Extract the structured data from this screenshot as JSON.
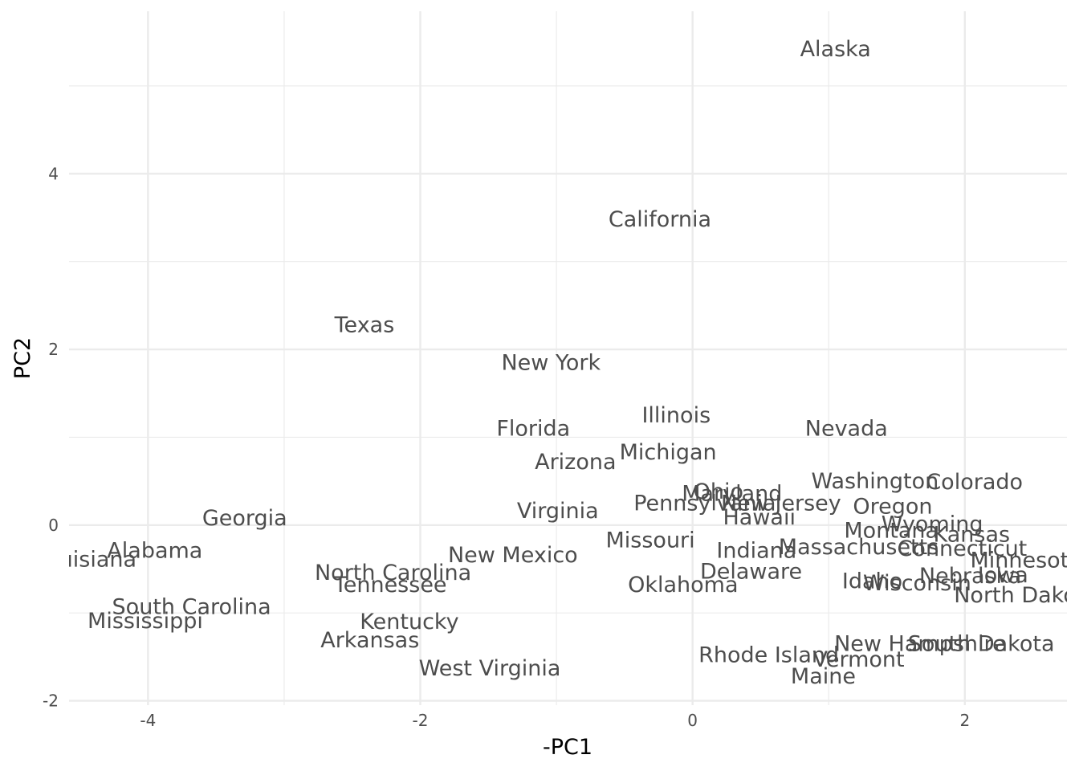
{
  "chart_data": {
    "type": "scatter",
    "xlabel": "-PC1",
    "ylabel": "PC2",
    "xlim": [
      -4.58,
      2.75
    ],
    "ylim": [
      -2.05,
      5.85
    ],
    "x_major_ticks": [
      -4,
      -2,
      0,
      2
    ],
    "x_minor_ticks": [
      -3,
      -1,
      1
    ],
    "y_major_ticks": [
      -2,
      0,
      2,
      4
    ],
    "y_minor_ticks": [
      -1,
      1,
      3,
      5
    ],
    "grid": true,
    "points": [
      {
        "label": "Alaska",
        "x": 1.05,
        "y": 5.43
      },
      {
        "label": "California",
        "x": -0.24,
        "y": 3.49
      },
      {
        "label": "Texas",
        "x": -2.41,
        "y": 2.29
      },
      {
        "label": "New York",
        "x": -1.04,
        "y": 1.86
      },
      {
        "label": "Illinois",
        "x": -0.12,
        "y": 1.26
      },
      {
        "label": "Nevada",
        "x": 1.13,
        "y": 1.11
      },
      {
        "label": "Florida",
        "x": -1.17,
        "y": 1.11
      },
      {
        "label": "Michigan",
        "x": -0.18,
        "y": 0.84
      },
      {
        "label": "Arizona",
        "x": -0.86,
        "y": 0.73
      },
      {
        "label": "Washington",
        "x": 1.34,
        "y": 0.51
      },
      {
        "label": "Colorado",
        "x": 2.07,
        "y": 0.5
      },
      {
        "label": "Ohio",
        "x": 0.19,
        "y": 0.39
      },
      {
        "label": "Maryland",
        "x": 0.29,
        "y": 0.37
      },
      {
        "label": "New Jersey",
        "x": 0.65,
        "y": 0.26
      },
      {
        "label": "Pennsylvania",
        "x": 0.09,
        "y": 0.26
      },
      {
        "label": "Oregon",
        "x": 1.47,
        "y": 0.22
      },
      {
        "label": "Virginia",
        "x": -0.99,
        "y": 0.17
      },
      {
        "label": "Hawaii",
        "x": 0.49,
        "y": 0.1
      },
      {
        "label": "Georgia",
        "x": -3.29,
        "y": 0.09
      },
      {
        "label": "Wyoming",
        "x": 1.76,
        "y": 0.02
      },
      {
        "label": "Montana",
        "x": 1.46,
        "y": -0.05
      },
      {
        "label": "Kansas",
        "x": 2.05,
        "y": -0.1
      },
      {
        "label": "Missouri",
        "x": -0.31,
        "y": -0.16
      },
      {
        "label": "Alabama",
        "x": -3.95,
        "y": -0.28
      },
      {
        "label": "Indiana",
        "x": 0.47,
        "y": -0.28
      },
      {
        "label": "Massachusetts",
        "x": 1.22,
        "y": -0.24
      },
      {
        "label": "Connecticut",
        "x": 1.98,
        "y": -0.26
      },
      {
        "label": "Louisiana",
        "x": -4.46,
        "y": -0.38
      },
      {
        "label": "New Mexico",
        "x": -1.32,
        "y": -0.33
      },
      {
        "label": "Minnesota",
        "x": 2.45,
        "y": -0.39
      },
      {
        "label": "North Carolina",
        "x": -2.2,
        "y": -0.53
      },
      {
        "label": "Delaware",
        "x": 0.43,
        "y": -0.52
      },
      {
        "label": "Idaho",
        "x": 1.32,
        "y": -0.63
      },
      {
        "label": "Nebraska",
        "x": 2.04,
        "y": -0.57
      },
      {
        "label": "Iowa",
        "x": 2.28,
        "y": -0.56
      },
      {
        "label": "Tennessee",
        "x": -2.22,
        "y": -0.67
      },
      {
        "label": "Oklahoma",
        "x": -0.07,
        "y": -0.67
      },
      {
        "label": "Wisconsin",
        "x": 1.65,
        "y": -0.65
      },
      {
        "label": "North Dakota",
        "x": 2.45,
        "y": -0.79
      },
      {
        "label": "South Carolina",
        "x": -3.68,
        "y": -0.92
      },
      {
        "label": "Mississippi",
        "x": -4.02,
        "y": -1.08
      },
      {
        "label": "Kentucky",
        "x": -2.08,
        "y": -1.09
      },
      {
        "label": "Arkansas",
        "x": -2.37,
        "y": -1.3
      },
      {
        "label": "New Hampshire",
        "x": 1.67,
        "y": -1.34
      },
      {
        "label": "South Dakota",
        "x": 2.12,
        "y": -1.34
      },
      {
        "label": "Rhode Island",
        "x": 0.56,
        "y": -1.47
      },
      {
        "label": "Vermont",
        "x": 1.22,
        "y": -1.52
      },
      {
        "label": "West Virginia",
        "x": -1.49,
        "y": -1.62
      },
      {
        "label": "Maine",
        "x": 0.96,
        "y": -1.71
      }
    ]
  }
}
